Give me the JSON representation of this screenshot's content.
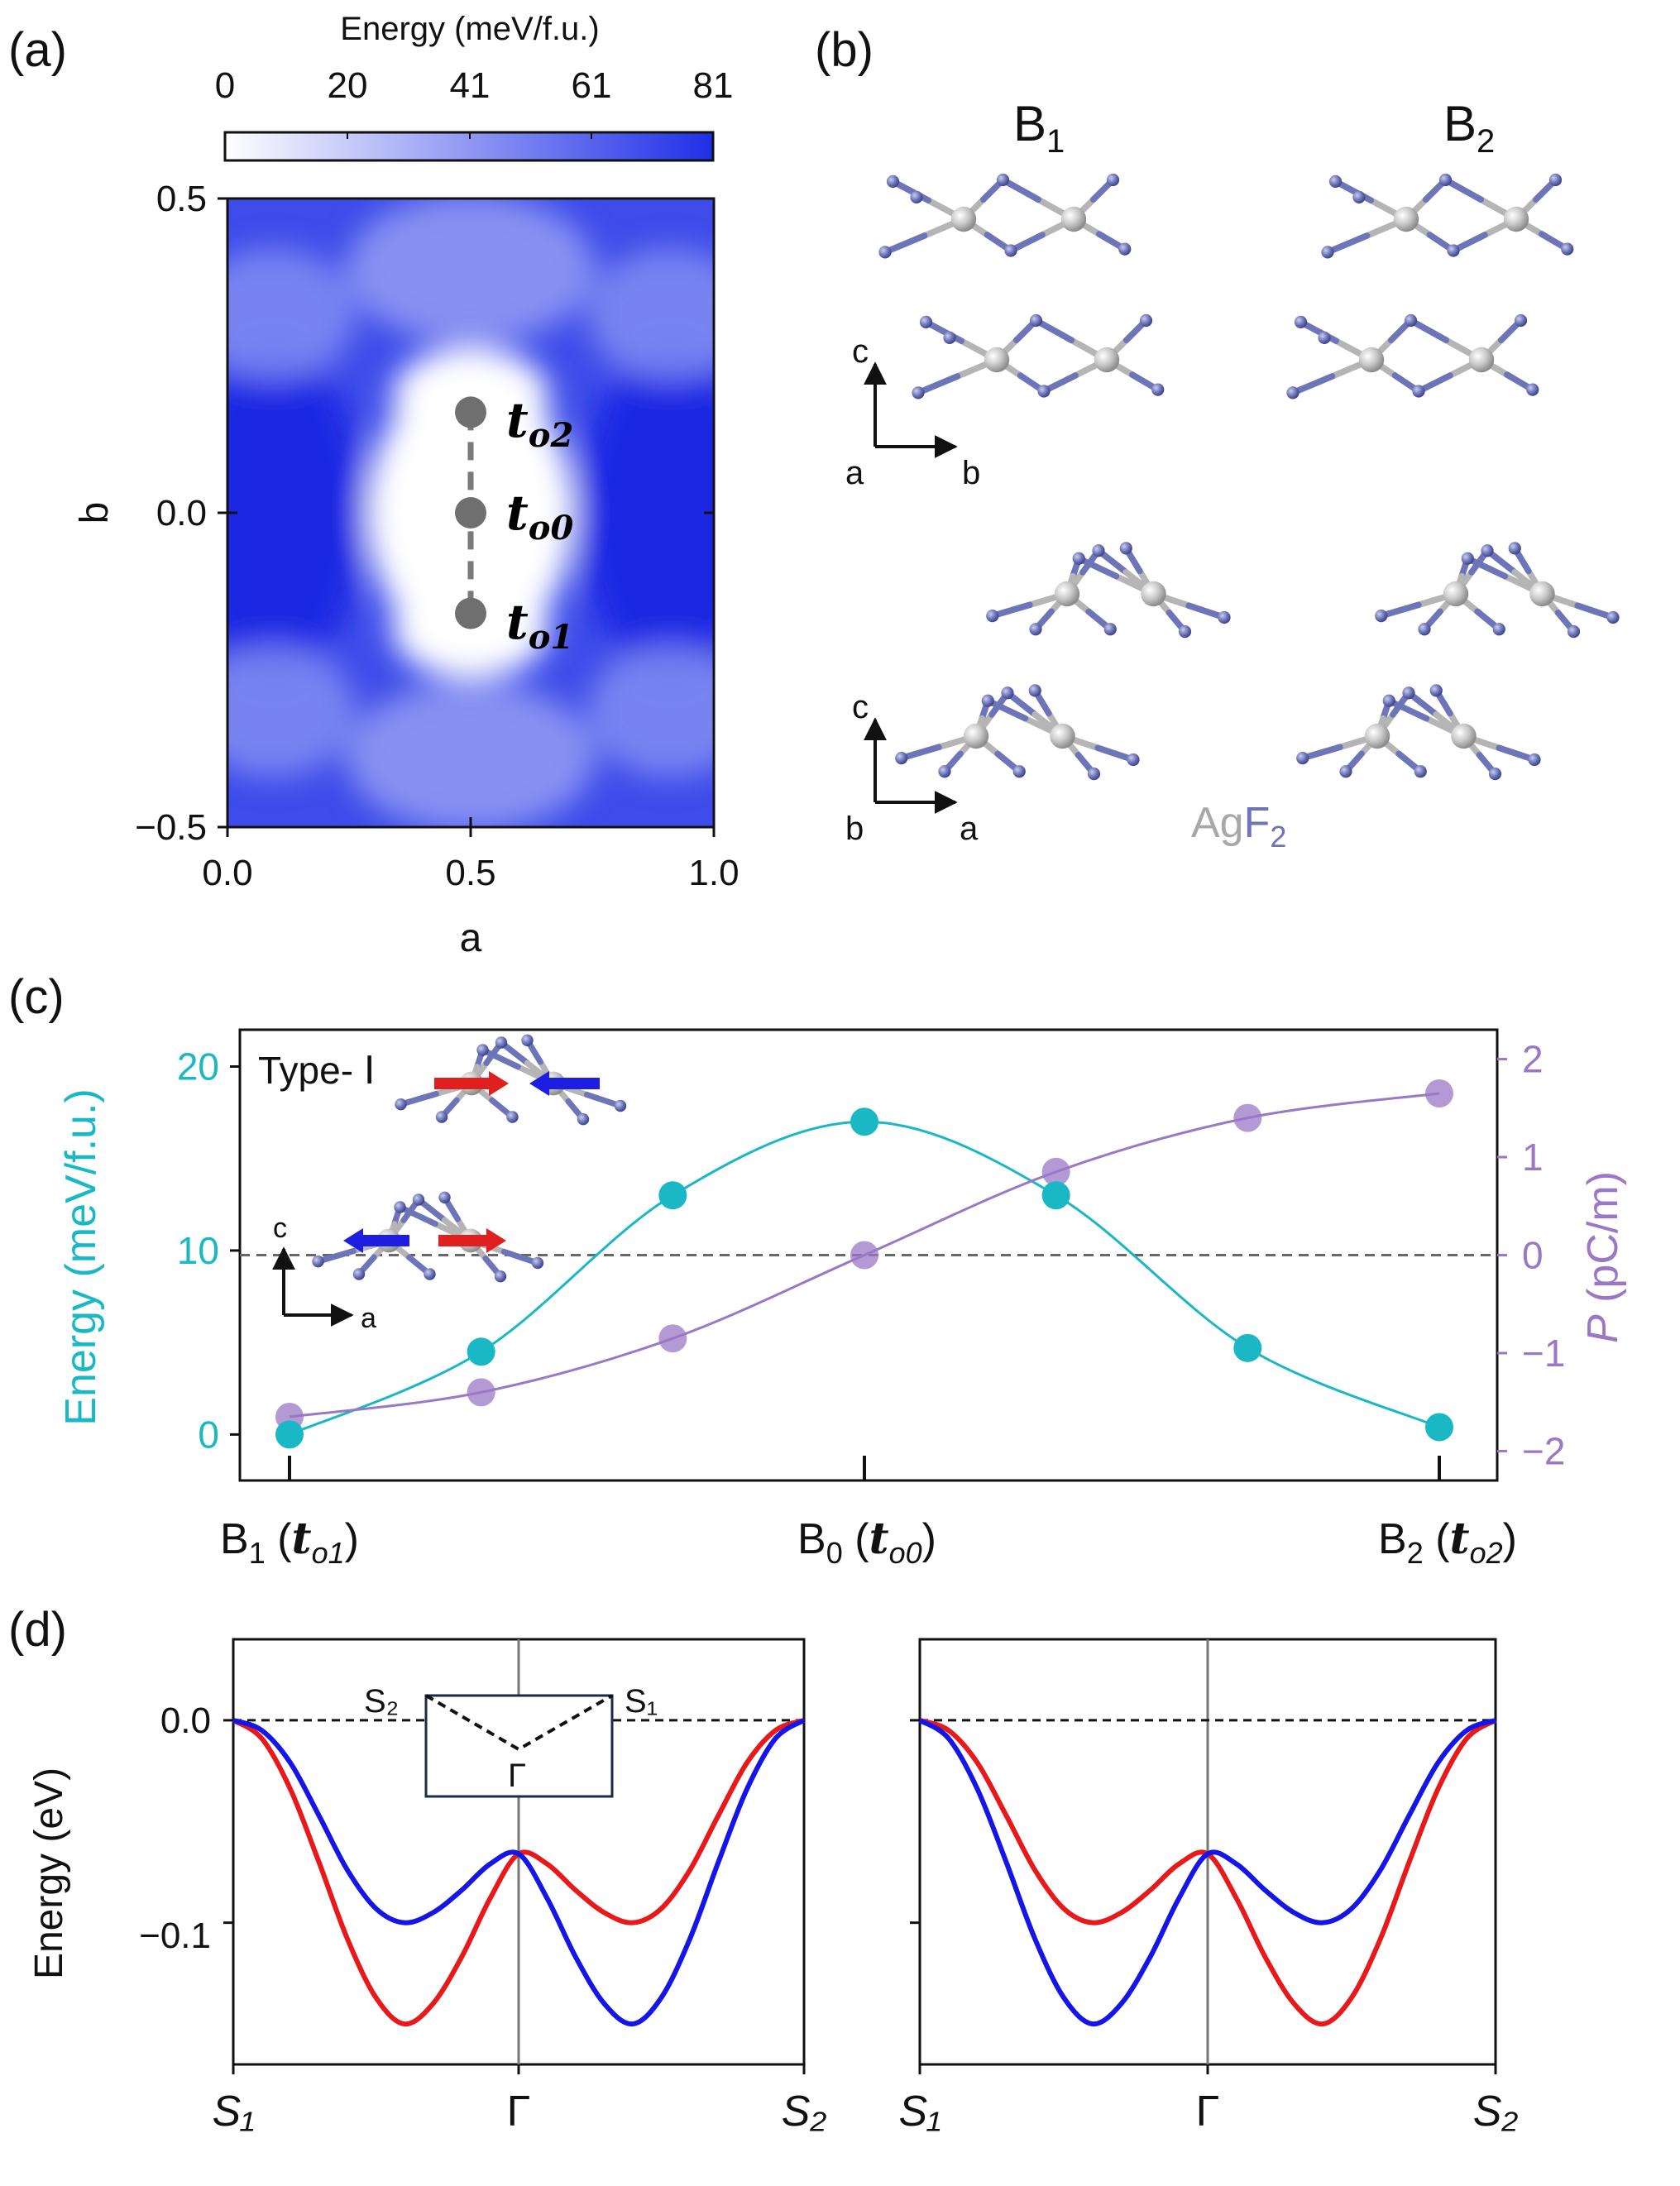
{
  "chart_data": [
    {
      "id": "a",
      "panel_label": "(a)",
      "type": "heatmap",
      "title": "",
      "colorbar": {
        "label": "Energy (meV/f.u.)",
        "ticks": [
          "0",
          "20",
          "41",
          "61",
          "81"
        ],
        "range": [
          0,
          81
        ],
        "color_low": "#ffffff",
        "color_high": "#1f2fe6"
      },
      "xlabel": "a",
      "ylabel": "b",
      "xlim": [
        0.0,
        1.0
      ],
      "ylim": [
        -0.5,
        0.5
      ],
      "x_ticks": [
        "0.0",
        "0.5",
        "1.0"
      ],
      "y_ticks": [
        "0.5",
        "0.0",
        "−0.5"
      ],
      "points": [
        {
          "name": "t_o2",
          "sub": "o2",
          "x": 0.5,
          "y": 0.16
        },
        {
          "name": "t_o0",
          "sub": "o0",
          "x": 0.5,
          "y": 0.0
        },
        {
          "name": "t_o1",
          "sub": "o1",
          "x": 0.5,
          "y": -0.16
        }
      ],
      "point_symbol": "t"
    },
    {
      "id": "c",
      "panel_label": "(c)",
      "type": "line",
      "x_categories": [
        "B₁ (tₒ₁)",
        "B₀ (tₒ₀)",
        "B₂ (tₒ₂)"
      ],
      "x_tick_labels": [
        {
          "base": "B",
          "base_sub": "1",
          "sym": "t",
          "sym_sub": "o1"
        },
        {
          "base": "B",
          "base_sub": "0",
          "sym": "t",
          "sym_sub": "o0"
        },
        {
          "base": "B",
          "base_sub": "2",
          "sym": "t",
          "sym_sub": "o2"
        }
      ],
      "x": [
        0,
        1,
        2,
        3,
        4,
        5,
        6
      ],
      "series": [
        {
          "name": "Energy",
          "axis": "left",
          "unit_label": "Energy (meV/f.u.)",
          "color": "#1ab7c4",
          "values": [
            0.0,
            4.5,
            13.0,
            17.0,
            13.0,
            4.7,
            0.4
          ]
        },
        {
          "name": "P",
          "axis": "right",
          "unit_label": "P (pC/m)",
          "color": "#9a78c6",
          "values": [
            -1.65,
            -1.4,
            -0.85,
            0.0,
            0.85,
            1.4,
            1.65
          ]
        }
      ],
      "ylabel_left": "Energy (meV/f.u.)",
      "ylabel_right_italic": "P",
      "ylabel_right_rest": " (pC/m)",
      "ylim_left": [
        -2.5,
        22
      ],
      "ylim_right": [
        -2.3,
        2.3
      ],
      "y_ticks_left": [
        "0",
        "10",
        "20"
      ],
      "y_ticks_right": [
        "−2",
        "−1",
        "0",
        "1",
        "2"
      ],
      "reference_line": {
        "axis": "right",
        "value": 0,
        "style": "dashed"
      },
      "inset_label": "Type- Ⅰ"
    },
    {
      "id": "d-left",
      "panel_label": "(d)",
      "type": "line",
      "ylabel": "Energy (eV)",
      "ylim": [
        -0.17,
        0.04
      ],
      "y_ticks": [
        "0.0",
        "−0.1"
      ],
      "x_tick_labels": [
        "S₁",
        "Γ",
        "S₂"
      ],
      "x": [
        0.0,
        0.05,
        0.1,
        0.15,
        0.2,
        0.25,
        0.3,
        0.35,
        0.4,
        0.45,
        0.5,
        0.55,
        0.6,
        0.65,
        0.7,
        0.75,
        0.8,
        0.85,
        0.9,
        0.95,
        1.0
      ],
      "series": [
        {
          "name": "red band",
          "color": "#e8191b",
          "values": [
            0.0,
            -0.009,
            -0.034,
            -0.07,
            -0.108,
            -0.137,
            -0.15,
            -0.14,
            -0.117,
            -0.088,
            -0.066,
            -0.071,
            -0.084,
            -0.095,
            -0.1,
            -0.093,
            -0.074,
            -0.047,
            -0.021,
            -0.005,
            0.0
          ]
        },
        {
          "name": "blue band",
          "color": "#1515e8",
          "values": [
            0.0,
            -0.005,
            -0.021,
            -0.047,
            -0.074,
            -0.093,
            -0.1,
            -0.095,
            -0.084,
            -0.071,
            -0.066,
            -0.088,
            -0.117,
            -0.14,
            -0.15,
            -0.137,
            -0.108,
            -0.07,
            -0.034,
            -0.009,
            0.0
          ]
        }
      ],
      "reference_line": {
        "value": 0.0,
        "style": "dashed"
      },
      "inset": {
        "labels": [
          "S₂",
          "S₁",
          "Γ"
        ]
      }
    },
    {
      "id": "d-right",
      "panel_label": "",
      "type": "line",
      "ylim": [
        -0.17,
        0.04
      ],
      "x_tick_labels": [
        "S₁",
        "Γ",
        "S₂"
      ],
      "x": [
        0.0,
        0.05,
        0.1,
        0.15,
        0.2,
        0.25,
        0.3,
        0.35,
        0.4,
        0.45,
        0.5,
        0.55,
        0.6,
        0.65,
        0.7,
        0.75,
        0.8,
        0.85,
        0.9,
        0.95,
        1.0
      ],
      "series": [
        {
          "name": "red band",
          "color": "#e8191b",
          "values": [
            0.0,
            -0.005,
            -0.021,
            -0.047,
            -0.074,
            -0.093,
            -0.1,
            -0.095,
            -0.084,
            -0.071,
            -0.066,
            -0.088,
            -0.117,
            -0.14,
            -0.15,
            -0.137,
            -0.108,
            -0.07,
            -0.034,
            -0.009,
            0.0
          ]
        },
        {
          "name": "blue band",
          "color": "#1515e8",
          "values": [
            0.0,
            -0.009,
            -0.034,
            -0.07,
            -0.108,
            -0.137,
            -0.15,
            -0.14,
            -0.117,
            -0.088,
            -0.066,
            -0.071,
            -0.084,
            -0.095,
            -0.1,
            -0.093,
            -0.074,
            -0.047,
            -0.021,
            -0.005,
            0.0
          ]
        }
      ],
      "reference_line": {
        "value": 0.0,
        "style": "dashed"
      }
    }
  ],
  "panel_b": {
    "panel_label": "(b)",
    "column_titles": [
      {
        "base": "B",
        "sub": "1"
      },
      {
        "base": "B",
        "sub": "2"
      }
    ],
    "top_axes": {
      "up": "c",
      "left": "a",
      "right": "b"
    },
    "bottom_axes": {
      "up": "c",
      "left": "b",
      "right": "a"
    },
    "formula": {
      "ag": "Ag",
      "f": "F",
      "f_sub": "2"
    },
    "ag_color": "#bdbdbd",
    "f_color": "#6d74b8"
  },
  "panel_c_inset_axes": {
    "up": "c",
    "right": "a"
  }
}
